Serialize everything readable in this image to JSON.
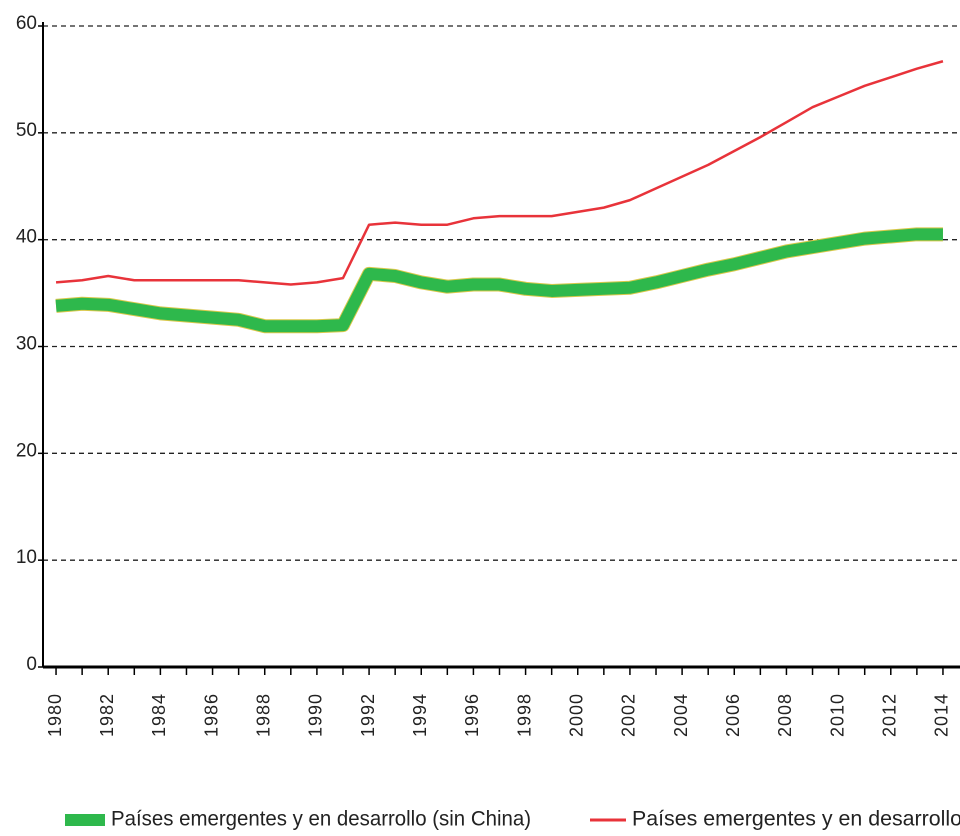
{
  "chart_data": {
    "type": "line",
    "x": [
      1980,
      1981,
      1982,
      1983,
      1984,
      1985,
      1986,
      1987,
      1988,
      1989,
      1990,
      1991,
      1992,
      1993,
      1994,
      1995,
      1996,
      1997,
      1998,
      1999,
      2000,
      2001,
      2002,
      2003,
      2004,
      2005,
      2006,
      2007,
      2008,
      2009,
      2010,
      2011,
      2012,
      2013,
      2014
    ],
    "series": [
      {
        "name": "Países emergentes y en desarrollo (sin China)",
        "color": "#2eb84c",
        "values": [
          33.8,
          34.0,
          33.9,
          33.5,
          33.1,
          32.9,
          32.7,
          32.5,
          31.9,
          31.9,
          31.9,
          32.0,
          36.8,
          36.6,
          36.0,
          35.6,
          35.8,
          35.8,
          35.4,
          35.2,
          35.3,
          35.4,
          35.5,
          36.0,
          36.6,
          37.2,
          37.7,
          38.3,
          38.9,
          39.3,
          39.7,
          40.1,
          40.3,
          40.5,
          40.5
        ]
      },
      {
        "name": "Países emergentes y en desarrollo",
        "color": "#e8333a",
        "values": [
          36.0,
          36.2,
          36.6,
          36.2,
          36.2,
          36.2,
          36.2,
          36.2,
          36.0,
          35.8,
          36.0,
          36.4,
          41.4,
          41.6,
          41.4,
          41.4,
          42.0,
          42.2,
          42.2,
          42.2,
          42.6,
          43.0,
          43.7,
          44.8,
          45.9,
          47.0,
          48.3,
          49.6,
          51.0,
          52.4,
          53.4,
          54.4,
          55.2,
          56.0,
          56.7
        ]
      }
    ],
    "xlim": [
      1979.5,
      2014.5
    ],
    "xticks": [
      1980,
      1982,
      1984,
      1986,
      1988,
      1990,
      1992,
      1994,
      1996,
      1998,
      2000,
      2002,
      2004,
      2006,
      2008,
      2010,
      2012,
      2014
    ],
    "xminorticks": [
      1981,
      1983,
      1985,
      1987,
      1989,
      1991,
      1993,
      1995,
      1997,
      1999,
      2001,
      2003,
      2005,
      2007,
      2009,
      2011,
      2013
    ],
    "ylim": [
      0,
      60
    ],
    "yticks": [
      0,
      10,
      20,
      30,
      40,
      50,
      60
    ],
    "grid": true
  }
}
